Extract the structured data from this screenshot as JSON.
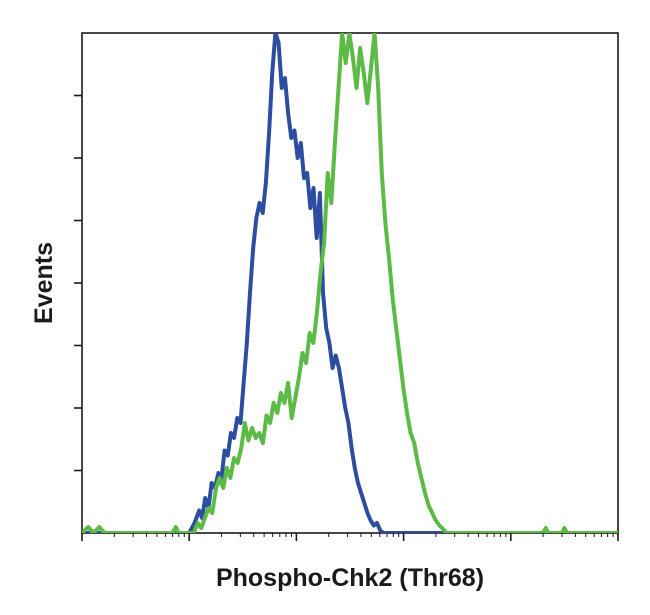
{
  "chart_data": {
    "type": "line",
    "title": "",
    "xlabel": "Phospho-Chk2 (Thr68)",
    "ylabel": "Events",
    "x_scale": "log",
    "xlim": [
      1,
      100000
    ],
    "ylim": [
      0,
      100
    ],
    "tick_labels_shown": false,
    "grid": false,
    "legend": "none",
    "series": [
      {
        "color": "#2d4da0",
        "values": [
          [
            1.0,
            0.0
          ],
          [
            10.0,
            0.0
          ],
          [
            11.2,
            2.0
          ],
          [
            12.4,
            4.5
          ],
          [
            13.2,
            3.0
          ],
          [
            14.1,
            7.0
          ],
          [
            15.1,
            5.0
          ],
          [
            16.2,
            10.0
          ],
          [
            17.4,
            9.0
          ],
          [
            18.7,
            12.0
          ],
          [
            20.0,
            11.0
          ],
          [
            21.4,
            16.5
          ],
          [
            22.9,
            15.5
          ],
          [
            24.5,
            20.0
          ],
          [
            26.2,
            19.0
          ],
          [
            28.1,
            23.0
          ],
          [
            30.1,
            22.0
          ],
          [
            32.2,
            30.0
          ],
          [
            34.5,
            38.0
          ],
          [
            36.9,
            48.0
          ],
          [
            39.5,
            57.0
          ],
          [
            42.3,
            63.0
          ],
          [
            45.3,
            66.0
          ],
          [
            48.5,
            64.0
          ],
          [
            51.9,
            70.0
          ],
          [
            55.6,
            80.0
          ],
          [
            59.5,
            92.0
          ],
          [
            63.7,
            100.0
          ],
          [
            68.2,
            98.0
          ],
          [
            73.0,
            89.0
          ],
          [
            78.2,
            91.0
          ],
          [
            83.7,
            84.0
          ],
          [
            89.6,
            79.0
          ],
          [
            95.9,
            80.5
          ],
          [
            102.7,
            75.0
          ],
          [
            110.0,
            78.0
          ],
          [
            117.7,
            71.0
          ],
          [
            126.0,
            72.0
          ],
          [
            134.9,
            65.0
          ],
          [
            144.4,
            69.0
          ],
          [
            154.6,
            59.0
          ],
          [
            165.5,
            68.0
          ],
          [
            177.2,
            48.0
          ],
          [
            189.7,
            41.0
          ],
          [
            203.1,
            38.0
          ],
          [
            217.5,
            33.0
          ],
          [
            232.8,
            35.5
          ],
          [
            249.2,
            33.0
          ],
          [
            266.8,
            29.0
          ],
          [
            285.6,
            25.0
          ],
          [
            305.8,
            22.0
          ],
          [
            327.4,
            17.0
          ],
          [
            350.5,
            13.0
          ],
          [
            375.2,
            10.0
          ],
          [
            401.7,
            8.0
          ],
          [
            430.0,
            6.0
          ],
          [
            460.4,
            4.0
          ],
          [
            492.9,
            2.5
          ],
          [
            527.7,
            1.5
          ],
          [
            564.9,
            2.0
          ],
          [
            604.8,
            0.5
          ],
          [
            647.5,
            0.0
          ],
          [
            100000,
            0.0
          ]
        ]
      },
      {
        "color": "#5cba47",
        "values": [
          [
            1.0,
            0.0
          ],
          [
            1.14,
            1.2
          ],
          [
            1.28,
            0.0
          ],
          [
            1.45,
            1.2
          ],
          [
            1.62,
            0.0
          ],
          [
            7.0,
            0.0
          ],
          [
            7.5,
            1.2
          ],
          [
            8.0,
            0.0
          ],
          [
            11.0,
            0.0
          ],
          [
            12.0,
            2.0
          ],
          [
            13.0,
            1.0
          ],
          [
            14.0,
            3.0
          ],
          [
            15.2,
            5.0
          ],
          [
            16.4,
            4.0
          ],
          [
            17.8,
            9.0
          ],
          [
            19.2,
            11.0
          ],
          [
            20.8,
            9.0
          ],
          [
            22.4,
            13.0
          ],
          [
            24.2,
            11.0
          ],
          [
            26.2,
            15.0
          ],
          [
            28.3,
            14.0
          ],
          [
            30.6,
            17.0
          ],
          [
            33.0,
            22.0
          ],
          [
            35.7,
            18.5
          ],
          [
            38.6,
            21.0
          ],
          [
            41.7,
            19.0
          ],
          [
            45.0,
            20.0
          ],
          [
            48.7,
            18.0
          ],
          [
            52.6,
            23.5
          ],
          [
            56.8,
            22.0
          ],
          [
            61.4,
            26.0
          ],
          [
            66.3,
            24.0
          ],
          [
            71.6,
            28.0
          ],
          [
            77.4,
            26.0
          ],
          [
            83.6,
            30.0
          ],
          [
            90.4,
            23.0
          ],
          [
            97.6,
            27.0
          ],
          [
            105.5,
            31.0
          ],
          [
            114.0,
            36.0
          ],
          [
            123.1,
            34.0
          ],
          [
            133.1,
            40.0
          ],
          [
            143.8,
            38.0
          ],
          [
            155.3,
            44.0
          ],
          [
            167.8,
            52.0
          ],
          [
            181.3,
            58.0
          ],
          [
            195.9,
            72.0
          ],
          [
            211.7,
            66.0
          ],
          [
            228.7,
            78.0
          ],
          [
            247.1,
            89.0
          ],
          [
            267.0,
            100.0
          ],
          [
            288.5,
            94.0
          ],
          [
            311.7,
            100.0
          ],
          [
            336.8,
            95.0
          ],
          [
            363.9,
            89.0
          ],
          [
            393.2,
            97.0
          ],
          [
            424.9,
            92.0
          ],
          [
            459.1,
            86.0
          ],
          [
            496.1,
            93.0
          ],
          [
            536.0,
            100.0
          ],
          [
            579.2,
            89.0
          ],
          [
            625.8,
            72.0
          ],
          [
            676.2,
            62.0
          ],
          [
            730.6,
            55.0
          ],
          [
            789.4,
            47.0
          ],
          [
            852.9,
            41.0
          ],
          [
            921.5,
            35.0
          ],
          [
            995.7,
            29.0
          ],
          [
            1076,
            24.0
          ],
          [
            1162,
            20.0
          ],
          [
            1256,
            18.0
          ],
          [
            1357,
            14.0
          ],
          [
            1466,
            11.0
          ],
          [
            1584,
            8.0
          ],
          [
            1712,
            5.5
          ],
          [
            1849,
            4.0
          ],
          [
            1998,
            2.5
          ],
          [
            2159,
            1.5
          ],
          [
            2333,
            0.8
          ],
          [
            2520,
            0.0
          ],
          [
            20000,
            0.0
          ],
          [
            21200,
            1.0
          ],
          [
            22400,
            0.0
          ],
          [
            30000,
            0.0
          ],
          [
            31600,
            1.0
          ],
          [
            33400,
            0.0
          ],
          [
            100000,
            0.0
          ]
        ]
      }
    ]
  }
}
